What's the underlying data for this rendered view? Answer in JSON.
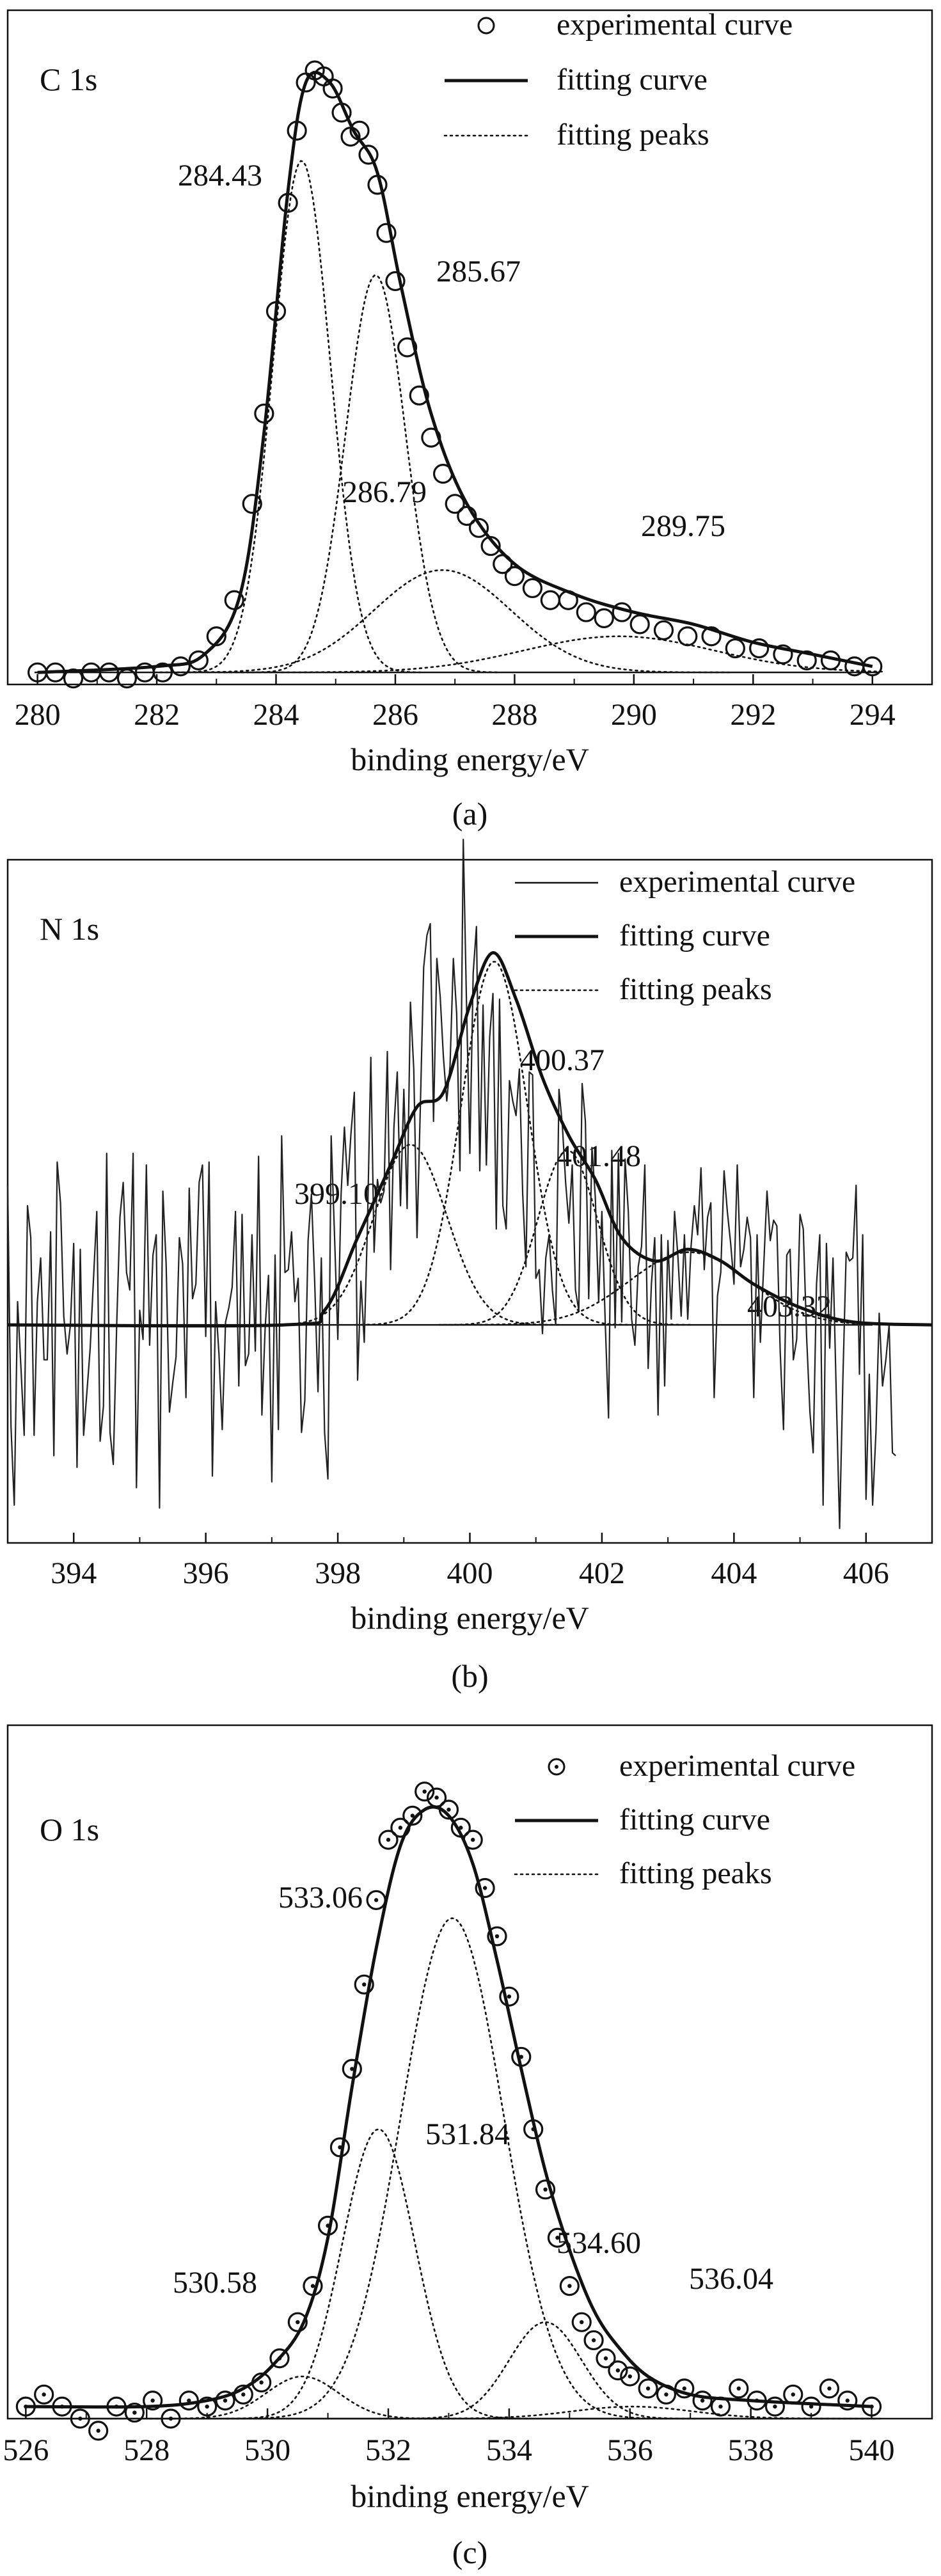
{
  "chart_data": [
    {
      "type": "line",
      "panel_label": "C  1s",
      "caption": "(a)",
      "xlabel": "binding energy/eV",
      "ylabel": "",
      "xlim": [
        279.5,
        295.0
      ],
      "ylim": [
        0,
        1.12
      ],
      "x_ticks": [
        "280",
        "282",
        "284",
        "286",
        "288",
        "290",
        "292",
        "294"
      ],
      "x_tick_values": [
        280,
        282,
        284,
        286,
        288,
        290,
        292,
        294
      ],
      "legend": {
        "placement": "top-right",
        "experimental": "experimental curve",
        "fitting": "fitting curve",
        "peaks": "fitting peaks"
      },
      "experimental_marker": "open-circle",
      "baseline": 0.02,
      "peaks": [
        {
          "center": 284.43,
          "height": 0.85,
          "sigma": 0.48,
          "label": "284.43"
        },
        {
          "center": 285.67,
          "height": 0.66,
          "sigma": 0.5,
          "label": "285.67"
        },
        {
          "center": 286.79,
          "height": 0.17,
          "sigma": 1.15,
          "label": "286.79"
        },
        {
          "center": 289.75,
          "height": 0.06,
          "sigma": 1.6,
          "label": "289.75"
        }
      ],
      "fitting_curve": {
        "x": [
          280,
          282,
          282.8,
          283.4,
          283.8,
          284.2,
          284.5,
          284.9,
          285.3,
          285.7,
          286.1,
          286.6,
          287.2,
          288,
          289,
          290,
          291,
          292,
          293,
          294
        ],
        "y": [
          0.02,
          0.03,
          0.05,
          0.15,
          0.42,
          0.82,
          1.0,
          1.0,
          0.92,
          0.85,
          0.66,
          0.45,
          0.3,
          0.2,
          0.15,
          0.12,
          0.1,
          0.07,
          0.05,
          0.03
        ]
      },
      "experimental_points": {
        "x": [
          280,
          280.3,
          280.6,
          280.9,
          281.2,
          281.5,
          281.8,
          282.1,
          282.4,
          282.7,
          283.0,
          283.3,
          283.6,
          283.8,
          284.0,
          284.2,
          284.35,
          284.5,
          284.65,
          284.8,
          284.95,
          285.1,
          285.25,
          285.4,
          285.55,
          285.7,
          285.85,
          286.0,
          286.2,
          286.4,
          286.6,
          286.8,
          287.0,
          287.2,
          287.4,
          287.6,
          287.8,
          288.0,
          288.3,
          288.6,
          288.9,
          289.2,
          289.5,
          289.8,
          290.1,
          290.5,
          290.9,
          291.3,
          291.7,
          292.1,
          292.5,
          292.9,
          293.3,
          293.7,
          294.0
        ],
        "y": [
          0.02,
          0.02,
          0.01,
          0.02,
          0.02,
          0.01,
          0.02,
          0.02,
          0.03,
          0.04,
          0.08,
          0.14,
          0.3,
          0.45,
          0.62,
          0.8,
          0.92,
          1.0,
          1.02,
          1.01,
          0.99,
          0.95,
          0.91,
          0.92,
          0.88,
          0.83,
          0.75,
          0.67,
          0.56,
          0.48,
          0.41,
          0.35,
          0.3,
          0.28,
          0.26,
          0.23,
          0.2,
          0.18,
          0.16,
          0.14,
          0.14,
          0.12,
          0.11,
          0.12,
          0.1,
          0.09,
          0.08,
          0.08,
          0.06,
          0.06,
          0.05,
          0.04,
          0.04,
          0.03,
          0.03
        ]
      }
    },
    {
      "type": "line",
      "panel_label": "N  1s",
      "caption": "(b)",
      "xlabel": "binding energy/eV",
      "ylabel": "",
      "xlim": [
        393.0,
        407.0
      ],
      "ylim": [
        -0.75,
        1.6
      ],
      "x_ticks": [
        "394",
        "396",
        "398",
        "400",
        "402",
        "404",
        "406"
      ],
      "x_tick_values": [
        394,
        396,
        398,
        400,
        402,
        404,
        406
      ],
      "legend": {
        "placement": "top-right",
        "experimental": "experimental curve",
        "fitting": "fitting curve",
        "peaks": "fitting peaks"
      },
      "experimental_marker": "thin-line",
      "baseline": 0.0,
      "peaks": [
        {
          "center": 399.1,
          "height": 0.62,
          "sigma": 0.55,
          "label": "399.10"
        },
        {
          "center": 400.37,
          "height": 1.25,
          "sigma": 0.5,
          "label": "400.37"
        },
        {
          "center": 401.48,
          "height": 0.6,
          "sigma": 0.45,
          "label": "401.48"
        },
        {
          "center": 403.32,
          "height": 0.25,
          "sigma": 0.9,
          "label": "403.32"
        }
      ],
      "fitting_curve": {
        "x": [
          393,
          397.2,
          397.8,
          398.3,
          398.8,
          399.2,
          399.6,
          400.0,
          400.35,
          400.7,
          401.1,
          401.5,
          401.9,
          402.3,
          402.8,
          403.3,
          403.8,
          404.3,
          405.0,
          405.8,
          407
        ],
        "y": [
          0.0,
          0.0,
          0.05,
          0.3,
          0.55,
          0.75,
          0.8,
          1.1,
          1.28,
          1.12,
          0.85,
          0.65,
          0.5,
          0.3,
          0.22,
          0.26,
          0.22,
          0.14,
          0.06,
          0.01,
          0.0
        ]
      },
      "experimental_trace": {
        "x_start": 393.0,
        "x_step": 0.05,
        "y": [
          0.48,
          -0.35,
          -0.62,
          0.08,
          -0.14,
          -0.38,
          0.41,
          0.3,
          -0.38,
          0.08,
          0.23,
          -0.12,
          -0.12,
          0.32,
          -0.45,
          0.56,
          0.42,
          0.03,
          -0.1,
          0.0,
          0.28,
          -0.49,
          0.26,
          -0.38,
          -0.23,
          -0.08,
          0.16,
          0.39,
          -0.4,
          -0.28,
          0.59,
          -0.37,
          -0.48,
          -0.01,
          0.37,
          0.49,
          0.18,
          0.12,
          0.59,
          -0.56,
          0.05,
          -0.05,
          0.55,
          -0.07,
          0.24,
          0.31,
          -0.63,
          0.46,
          0.21,
          -0.3,
          -0.2,
          -0.11,
          0.3,
          0.21,
          -0.25,
          0.47,
          0.09,
          0.14,
          0.49,
          0.55,
          -0.04,
          0.56,
          -0.52,
          0.08,
          -0.1,
          -0.36,
          0.01,
          0.06,
          0.13,
          0.39,
          -0.21,
          0.38,
          -0.14,
          -0.1,
          0.31,
          -0.09,
          0.58,
          -0.31,
          -0.01,
          0.17,
          -0.54,
          0.24,
          -0.36,
          0.65,
          0.18,
          0.19,
          0.32,
          0.08,
          0.16,
          -0.37,
          -0.26,
          0.29,
          0.45,
          0.15,
          -0.23,
          0.23,
          -0.37,
          -0.53,
          0.65,
          0.31,
          -0.05,
          0.45,
          0.68,
          0.48,
          0.66,
          0.8,
          -0.19,
          0.15,
          -0.06,
          0.35,
          0.92,
          0.25,
          0.5,
          0.42,
          0.46,
          0.94,
          0.19,
          0.68,
          0.87,
          0.41,
          0.81,
          0.4,
          1.11,
          0.88,
          0.3,
          0.75,
          1.23,
          1.34,
          1.38,
          0.7,
          1.26,
          1.13,
          0.92,
          0.77,
          0.89,
          1.26,
          1.07,
          0.53,
          1.67,
          1.1,
          0.59,
          1.21,
          1.37,
          0.53,
          1.1,
          0.55,
          0.99,
          1.14,
          0.33,
          1.12,
          0.41,
          0.33,
          0.84,
          0.77,
          0.72,
          0.88,
          0.45,
          0.2,
          0.87,
          0.86,
          0.16,
          0.19,
          -0.03,
          0.23,
          0.31,
          0.12,
          0.0,
          0.81,
          0.69,
          0.49,
          0.35,
          0.55,
          0.12,
          0.05,
          0.83,
          0.7,
          0.09,
          0.61,
          0.44,
          0.08,
          0.39,
          0.01,
          -0.32,
          0.6,
          -0.01,
          0.59,
          0.01,
          0.57,
          0.39,
          0.02,
          -0.07,
          0.2,
          0.27,
          0.55,
          -0.15,
          0.14,
          0.3,
          -0.31,
          0.31,
          -0.21,
          0.29,
          0.02,
          0.39,
          0.24,
          0.03,
          0.31,
          0.02,
          0.27,
          0.41,
          0.31,
          0.54,
          0.19,
          0.37,
          0.42,
          -0.25,
          0.1,
          0.18,
          0.53,
          0.39,
          0.28,
          0.14,
          0.55,
          0.2,
          0.26,
          0.37,
          0.3,
          -0.25,
          0.31,
          -0.06,
          0.2,
          0.46,
          0.29,
          0.36,
          0.34,
          -0.09,
          -0.36,
          0.24,
          0.26,
          -0.12,
          -0.05,
          0.38,
          0.33,
          -0.04,
          -0.3,
          -0.44,
          0.14,
          0.31,
          -0.62,
          0.28,
          -0.08,
          0.23,
          -0.24,
          -0.7,
          -0.18,
          0.25,
          0.22,
          0.23,
          0.48,
          -0.17,
          0.31,
          -0.6,
          -0.17,
          -0.62,
          -0.37,
          0.04,
          -0.21,
          -0.12,
          0.0,
          -0.44,
          -0.45
        ]
      }
    },
    {
      "type": "line",
      "panel_label": "O 1s",
      "caption": "(c)",
      "xlabel": "binding energy/eV",
      "ylabel": "",
      "xlim": [
        525.7,
        541.0
      ],
      "ylim": [
        0,
        1.15
      ],
      "x_ticks": [
        "526",
        "528",
        "530",
        "532",
        "534",
        "536",
        "538",
        "540"
      ],
      "x_tick_values": [
        526,
        528,
        530,
        532,
        534,
        536,
        538,
        540
      ],
      "legend": {
        "placement": "top-right",
        "experimental": "experimental curve",
        "fitting": "fitting curve",
        "peaks": "fitting peaks"
      },
      "experimental_marker": "dotted-circle",
      "baseline": 0.0,
      "peaks": [
        {
          "center": 530.58,
          "height": 0.07,
          "sigma": 0.6,
          "label": "530.58"
        },
        {
          "center": 531.84,
          "height": 0.48,
          "sigma": 0.6,
          "label": "531.84"
        },
        {
          "center": 533.06,
          "height": 0.83,
          "sigma": 0.85,
          "label": "533.06"
        },
        {
          "center": 534.6,
          "height": 0.16,
          "sigma": 0.6,
          "label": "534.60"
        },
        {
          "center": 536.04,
          "height": 0.02,
          "sigma": 1.0,
          "label": "536.04"
        }
      ],
      "fitting_curve": {
        "x": [
          526,
          528,
          529,
          529.6,
          530.1,
          530.6,
          531.0,
          531.4,
          531.8,
          532.2,
          532.6,
          533.0,
          533.4,
          533.8,
          534.2,
          534.6,
          535.0,
          535.4,
          535.8,
          536.3,
          537,
          538,
          540
        ],
        "y": [
          0.02,
          0.02,
          0.03,
          0.05,
          0.09,
          0.16,
          0.3,
          0.55,
          0.78,
          0.95,
          1.01,
          1.0,
          0.92,
          0.76,
          0.58,
          0.41,
          0.28,
          0.18,
          0.12,
          0.07,
          0.04,
          0.03,
          0.02
        ]
      },
      "experimental_points": {
        "x": [
          526,
          526.3,
          526.6,
          526.9,
          527.2,
          527.5,
          527.8,
          528.1,
          528.4,
          528.7,
          529.0,
          529.3,
          529.6,
          529.9,
          530.2,
          530.5,
          530.75,
          531.0,
          531.2,
          531.4,
          531.6,
          531.8,
          532.0,
          532.2,
          532.4,
          532.6,
          532.8,
          533.0,
          533.2,
          533.4,
          533.6,
          533.8,
          534.0,
          534.2,
          534.4,
          534.6,
          534.8,
          535.0,
          535.2,
          535.4,
          535.6,
          535.8,
          536.0,
          536.3,
          536.6,
          536.9,
          537.2,
          537.5,
          537.8,
          538.1,
          538.4,
          538.7,
          539.0,
          539.3,
          539.6,
          540.0
        ],
        "y": [
          0.02,
          0.04,
          0.02,
          0.0,
          -0.02,
          0.02,
          0.01,
          0.03,
          0.0,
          0.03,
          0.02,
          0.03,
          0.04,
          0.06,
          0.1,
          0.16,
          0.22,
          0.32,
          0.45,
          0.58,
          0.72,
          0.86,
          0.96,
          0.98,
          1.0,
          1.04,
          1.03,
          1.01,
          0.98,
          0.96,
          0.88,
          0.8,
          0.7,
          0.6,
          0.48,
          0.38,
          0.3,
          0.22,
          0.16,
          0.13,
          0.1,
          0.08,
          0.07,
          0.05,
          0.04,
          0.05,
          0.03,
          0.02,
          0.05,
          0.03,
          0.02,
          0.04,
          0.02,
          0.05,
          0.03,
          0.02
        ]
      }
    }
  ]
}
